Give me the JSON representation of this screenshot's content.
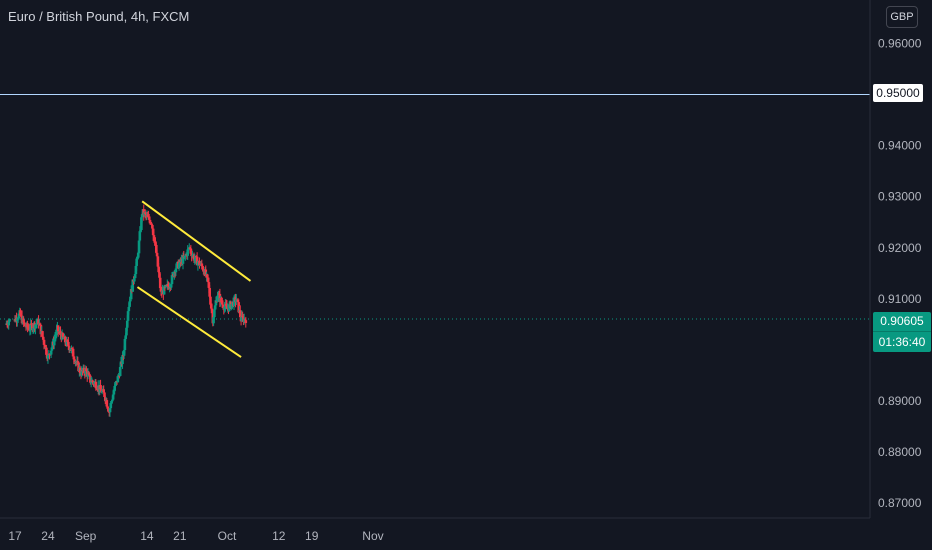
{
  "header": {
    "title": "Euro / British Pound, 4h, FXCM"
  },
  "currency": "GBP",
  "last_price": "0.90605",
  "countdown": "01:36:40",
  "level_label": "0.95000",
  "colors": {
    "background": "#131722",
    "up": "#089981",
    "down": "#f23645",
    "channel": "#ffeb3b",
    "level": "#b2d7ff",
    "price_line": "#089981",
    "text": "#b2b5be"
  },
  "chart_data": {
    "type": "candlestick",
    "symbol": "EURGBP",
    "interval": "4h",
    "y_ticks": [
      "0.96000",
      "0.95000",
      "0.94000",
      "0.93000",
      "0.92000",
      "0.91000",
      "0.90000",
      "0.89000",
      "0.88000",
      "0.87000"
    ],
    "ylim": [
      0.8671,
      0.9685
    ],
    "x_ticks": [
      "17",
      "24",
      "Sep",
      "14",
      "21",
      "Oct",
      "12",
      "19",
      "Nov"
    ],
    "x_tick_dates": [
      "2021-08-17",
      "2021-08-24",
      "2021-09-01",
      "2021-09-14",
      "2021-09-21",
      "2021-10-01",
      "2021-10-12",
      "2021-10-19",
      "2021-11-01"
    ],
    "horizontal_level": 0.95,
    "last_price": 0.90605,
    "channel": {
      "upper": [
        {
          "date": "2021-09-13",
          "price": 0.9291
        },
        {
          "date": "2021-10-06",
          "price": 0.9135
        }
      ],
      "lower": [
        {
          "date": "2021-09-12",
          "price": 0.9123
        },
        {
          "date": "2021-10-04",
          "price": 0.8986
        }
      ]
    },
    "candles": [
      {
        "date": "2021-08-16",
        "close": 0.905
      },
      {
        "date": "2021-08-17",
        "close": 0.906
      },
      {
        "date": "2021-08-18",
        "close": 0.907
      },
      {
        "date": "2021-08-19",
        "close": 0.9048
      },
      {
        "date": "2021-08-20",
        "close": 0.9042
      },
      {
        "date": "2021-08-22",
        "close": 0.9055
      },
      {
        "date": "2021-08-23",
        "close": 0.902
      },
      {
        "date": "2021-08-24",
        "close": 0.8985
      },
      {
        "date": "2021-08-25",
        "close": 0.901
      },
      {
        "date": "2021-08-26",
        "close": 0.904
      },
      {
        "date": "2021-08-27",
        "close": 0.9025
      },
      {
        "date": "2021-08-29",
        "close": 0.9
      },
      {
        "date": "2021-08-30",
        "close": 0.8975
      },
      {
        "date": "2021-08-31",
        "close": 0.8955
      },
      {
        "date": "2021-09-01",
        "close": 0.896
      },
      {
        "date": "2021-09-02",
        "close": 0.894
      },
      {
        "date": "2021-09-03",
        "close": 0.8935
      },
      {
        "date": "2021-09-05",
        "close": 0.8912
      },
      {
        "date": "2021-09-06",
        "close": 0.888
      },
      {
        "date": "2021-09-07",
        "close": 0.892
      },
      {
        "date": "2021-09-08",
        "close": 0.895
      },
      {
        "date": "2021-09-09",
        "close": 0.899
      },
      {
        "date": "2021-09-10",
        "close": 0.908
      },
      {
        "date": "2021-09-12",
        "close": 0.918
      },
      {
        "date": "2021-09-13",
        "close": 0.927
      },
      {
        "date": "2021-09-14",
        "close": 0.926
      },
      {
        "date": "2021-09-15",
        "close": 0.925
      },
      {
        "date": "2021-09-16",
        "close": 0.919
      },
      {
        "date": "2021-09-17",
        "close": 0.911
      },
      {
        "date": "2021-09-19",
        "close": 0.913
      },
      {
        "date": "2021-09-20",
        "close": 0.916
      },
      {
        "date": "2021-09-21",
        "close": 0.917
      },
      {
        "date": "2021-09-22",
        "close": 0.918
      },
      {
        "date": "2021-09-23",
        "close": 0.92
      },
      {
        "date": "2021-09-24",
        "close": 0.918
      },
      {
        "date": "2021-09-26",
        "close": 0.916
      },
      {
        "date": "2021-09-27",
        "close": 0.913
      },
      {
        "date": "2021-09-28",
        "close": 0.906
      },
      {
        "date": "2021-09-29",
        "close": 0.911
      },
      {
        "date": "2021-09-30",
        "close": 0.909
      },
      {
        "date": "2021-10-01",
        "close": 0.908
      },
      {
        "date": "2021-10-03",
        "close": 0.91
      },
      {
        "date": "2021-10-04",
        "close": 0.906
      },
      {
        "date": "2021-10-05",
        "close": 0.90605
      }
    ]
  }
}
